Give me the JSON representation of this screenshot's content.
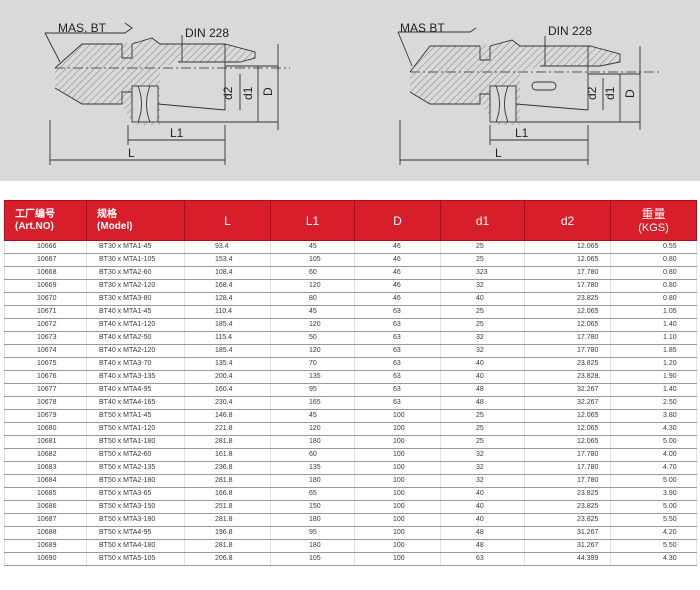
{
  "drawings": {
    "left": {
      "mas": "MAS, BT",
      "din": "DIN 228",
      "d2": "d2",
      "d1": "d1",
      "D": "D",
      "L1": "L1",
      "L": "L"
    },
    "right": {
      "mas": "MAS BT",
      "din": "DIN 228",
      "d2": "d2",
      "d1": "d1",
      "D": "D",
      "L1": "L1",
      "L": "L"
    }
  },
  "table": {
    "headers": {
      "art_cn": "工厂编号",
      "art_en": "(Art.NO)",
      "model_cn": "规格",
      "model_en": "(Model)",
      "L": "L",
      "L1": "L1",
      "D": "D",
      "d1": "d1",
      "d2": "d2",
      "weight_cn": "重量",
      "weight_en": "(KGS)"
    },
    "rows": [
      {
        "art": "10666",
        "model": "BT30 x MTA1-45",
        "L": "93.4",
        "L1": "45",
        "D": "46",
        "d1": "25",
        "d2": "12.065",
        "w": "0.55"
      },
      {
        "art": "10667",
        "model": "BT30 x MTA1-105",
        "L": "153.4",
        "L1": "105",
        "D": "46",
        "d1": "25",
        "d2": "12.065",
        "w": "0.80"
      },
      {
        "art": "10668",
        "model": "BT30 x MTA2-60",
        "L": "108.4",
        "L1": "60",
        "D": "46",
        "d1": "323",
        "d2": "17.780",
        "w": "0.80"
      },
      {
        "art": "10669",
        "model": "BT30 x MTA2-120",
        "L": "168.4",
        "L1": "120",
        "D": "46",
        "d1": "32",
        "d2": "17.780",
        "w": "0.80"
      },
      {
        "art": "10670",
        "model": "BT30 x MTA3-80",
        "L": "128.4",
        "L1": "80",
        "D": "46",
        "d1": "40",
        "d2": "23.825",
        "w": "0.80"
      },
      {
        "art": "10671",
        "model": "BT40 x MTA1-45",
        "L": "110.4",
        "L1": "45",
        "D": "63",
        "d1": "25",
        "d2": "12.065",
        "w": "1.05"
      },
      {
        "art": "10672",
        "model": "BT40 x MTA1-120",
        "L": "185.4",
        "L1": "120",
        "D": "63",
        "d1": "25",
        "d2": "12.065",
        "w": "1.40"
      },
      {
        "art": "10673",
        "model": "BT40 x MTA2-50",
        "L": "115.4",
        "L1": "50",
        "D": "63",
        "d1": "32",
        "d2": "17.780",
        "w": "1.10"
      },
      {
        "art": "10674",
        "model": "BT40 x MTA2-120",
        "L": "185.4",
        "L1": "120",
        "D": "63",
        "d1": "32",
        "d2": "17.780",
        "w": "1.85"
      },
      {
        "art": "10675",
        "model": "BT40 x MTA3-70",
        "L": "135.4",
        "L1": "70",
        "D": "63",
        "d1": "40",
        "d2": "23.825",
        "w": "1.20"
      },
      {
        "art": "10676",
        "model": "BT40 x MTA3-135",
        "L": "200.4",
        "L1": "135",
        "D": "63",
        "d1": "40",
        "d2": "23.828.",
        "w": "1.90"
      },
      {
        "art": "10677",
        "model": "BT40 x MTA4-95",
        "L": "160.4",
        "L1": "95",
        "D": "63",
        "d1": "48",
        "d2": "32.267",
        "w": "1.40"
      },
      {
        "art": "10678",
        "model": "BT40 x MTA4-165",
        "L": "230.4",
        "L1": "165",
        "D": "63",
        "d1": "48",
        "d2": "32.267",
        "w": "2.50"
      },
      {
        "art": "10679",
        "model": "BT50 x MTA1-45",
        "L": "146.8",
        "L1": "45",
        "D": "100",
        "d1": "25",
        "d2": "12.065",
        "w": "3.80"
      },
      {
        "art": "10680",
        "model": "BT50 x MTA1-120",
        "L": "221.8",
        "L1": "120",
        "D": "100",
        "d1": "25",
        "d2": "12.065",
        "w": "4.30"
      },
      {
        "art": "10681",
        "model": "BT50 x MTA1-180",
        "L": "281.8",
        "L1": "180",
        "D": "100",
        "d1": "25",
        "d2": "12.065",
        "w": "5.00"
      },
      {
        "art": "10682",
        "model": "BT50 x MTA2-60",
        "L": "161.8",
        "L1": "60",
        "D": "100",
        "d1": "32",
        "d2": "17.780",
        "w": "4.00"
      },
      {
        "art": "10683",
        "model": "BT50 x MTA2-135",
        "L": "236.8",
        "L1": "135",
        "D": "100",
        "d1": "32",
        "d2": "17.780",
        "w": "4.70"
      },
      {
        "art": "10684",
        "model": "BT50 x MTA2-180",
        "L": "281.8",
        "L1": "180",
        "D": "100",
        "d1": "32",
        "d2": "17.780",
        "w": "5.00"
      },
      {
        "art": "10685",
        "model": "BT50 x MTA3-65",
        "L": "166.8",
        "L1": "65",
        "D": "100",
        "d1": "40",
        "d2": "23.825",
        "w": "3.90"
      },
      {
        "art": "10686",
        "model": "BT50 x MTA3-150",
        "L": "251.8",
        "L1": "150",
        "D": "100",
        "d1": "40",
        "d2": "23.825",
        "w": "5.00"
      },
      {
        "art": "10687",
        "model": "BT50 x MTA3-180",
        "L": "281.8",
        "L1": "180",
        "D": "100",
        "d1": "40",
        "d2": "23.825",
        "w": "5.50"
      },
      {
        "art": "10688",
        "model": "BT50 x MTA4-95",
        "L": "196.8",
        "L1": "95",
        "D": "100",
        "d1": "48",
        "d2": "31.267",
        "w": "4.20"
      },
      {
        "art": "10689",
        "model": "BT50 x MTA4-180",
        "L": "281.8",
        "L1": "180",
        "D": "100",
        "d1": "48",
        "d2": "31.267",
        "w": "5.50"
      },
      {
        "art": "10690",
        "model": "BT50 x MTA5-105",
        "L": "206.8",
        "L1": "105",
        "D": "100",
        "d1": "63",
        "d2": "44.399",
        "w": "4.30"
      }
    ]
  }
}
